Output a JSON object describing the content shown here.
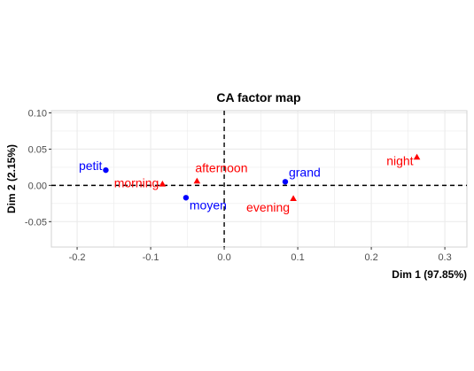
{
  "chart_data": {
    "type": "scatter",
    "title": "CA factor map",
    "xlabel": "Dim 1 (97.85%)",
    "ylabel": "Dim 2 (2.15%)",
    "xlim": [
      -0.235,
      0.33
    ],
    "ylim": [
      -0.085,
      0.103
    ],
    "xticks": [
      -0.2,
      -0.1,
      0.0,
      0.1,
      0.2,
      0.3
    ],
    "xtick_labels": [
      "-0.2",
      "-0.1",
      "0.0",
      "0.1",
      "0.2",
      "0.3"
    ],
    "yticks": [
      -0.05,
      0.0,
      0.05,
      0.1
    ],
    "ytick_labels": [
      "-0.05",
      "0.00",
      "0.05",
      "0.10"
    ],
    "grid": true,
    "reference_lines": {
      "x": 0,
      "y": 0,
      "style": "dashed"
    },
    "colors": {
      "rows": "#0000ff",
      "cols": "#ff0000",
      "grid": "#ebebeb",
      "panel_border": "#d3d3d3"
    },
    "series": [
      {
        "marker": "circle",
        "color": "#0000ff",
        "points": [
          {
            "label": "petit",
            "x": -0.161,
            "y": 0.021,
            "label_anchor": "end",
            "label_dx": -4,
            "label_dy": 0
          },
          {
            "label": "moyen",
            "x": -0.052,
            "y": -0.017,
            "label_anchor": "start",
            "label_dx": 4,
            "label_dy": 13
          },
          {
            "label": "grand",
            "x": 0.083,
            "y": 0.005,
            "label_anchor": "start",
            "label_dx": 4,
            "label_dy": -6
          }
        ]
      },
      {
        "marker": "triangle",
        "color": "#ff0000",
        "points": [
          {
            "label": "morning",
            "x": -0.084,
            "y": 0.002,
            "label_anchor": "end",
            "label_dx": -4,
            "label_dy": 4
          },
          {
            "label": "afternoon",
            "x": -0.037,
            "y": 0.006,
            "label_anchor": "start",
            "label_dx": -2,
            "label_dy": -10
          },
          {
            "label": "evening",
            "x": 0.094,
            "y": -0.018,
            "label_anchor": "end",
            "label_dx": -4,
            "label_dy": 15
          },
          {
            "label": "night",
            "x": 0.262,
            "y": 0.039,
            "label_anchor": "end",
            "label_dx": -4,
            "label_dy": 9
          }
        ]
      }
    ]
  }
}
